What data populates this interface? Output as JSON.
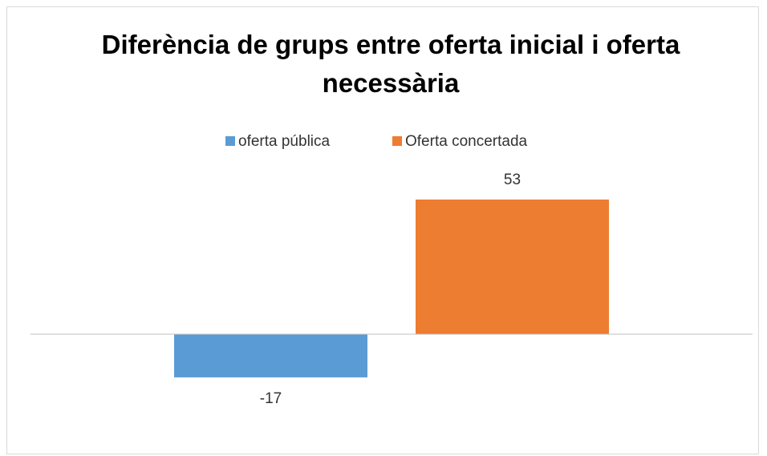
{
  "chart_data": {
    "type": "bar",
    "title": "Diferència de grups entre oferta inicial i oferta necessària",
    "categories": [
      null
    ],
    "series": [
      {
        "name": "oferta pública",
        "color": "#5b9bd5",
        "values": [
          -17
        ]
      },
      {
        "name": "Oferta concertada",
        "color": "#ed7d31",
        "values": [
          53
        ]
      }
    ],
    "legend": "top"
  }
}
